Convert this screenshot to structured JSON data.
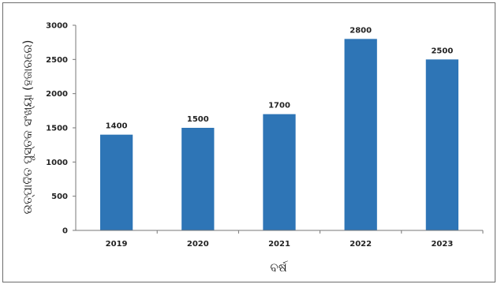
{
  "chart_data": {
    "type": "bar",
    "title": "",
    "xlabel": "ବର୍ଷ",
    "ylabel": "ଉତ୍ପାଦିତ ପୁସ୍ତକ ସଂଖ୍ୟା (ହଜାରରେ)",
    "categories": [
      "2019",
      "2020",
      "2021",
      "2022",
      "2023"
    ],
    "values": [
      1400,
      1500,
      1700,
      2800,
      2500
    ],
    "data_labels": [
      "1400",
      "1500",
      "1700",
      "2800",
      "2500"
    ],
    "ylim": [
      0,
      3000
    ],
    "yticks": [
      0,
      500,
      1000,
      1500,
      2000,
      2500,
      3000
    ],
    "ytick_labels": [
      "0",
      "500",
      "1000",
      "1500",
      "2000",
      "2500",
      "3000"
    ],
    "grid": false,
    "legend": "none",
    "bar_color": "#2e75b6"
  }
}
